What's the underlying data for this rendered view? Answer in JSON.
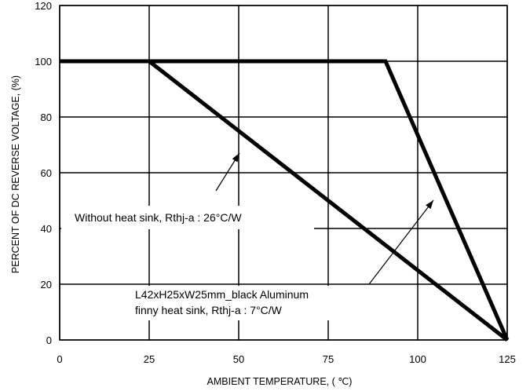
{
  "chart_data": {
    "type": "line",
    "xlabel": "AMBIENT TEMPERATURE, ( ℃)",
    "ylabel": "PERCENT OF DC REVERSE VOLTAGE, (%)",
    "xlim": [
      0,
      125
    ],
    "ylim": [
      0,
      120
    ],
    "x_ticks": [
      "0",
      "25",
      "50",
      "75",
      "100",
      "125"
    ],
    "y_ticks": [
      "0",
      "20",
      "40",
      "60",
      "80",
      "100",
      "120"
    ],
    "grid": true,
    "series": [
      {
        "name": "Without heat sink, Rthj-a : 26°C/W",
        "points": [
          [
            0,
            100
          ],
          [
            25,
            100
          ],
          [
            125,
            0
          ]
        ]
      },
      {
        "name": "L42xH25xW25mm_black Aluminum finny heat sink, Rthj-a : 7°C/W",
        "points": [
          [
            0,
            100
          ],
          [
            91,
            100
          ],
          [
            125,
            0
          ]
        ]
      }
    ],
    "annotations": [
      {
        "lines": [
          "Without heat sink, Rthj-a : 26°C/W"
        ]
      },
      {
        "lines": [
          "L42xH25xW25mm_black Aluminum",
          "finny heat sink, Rthj-a : 7°C/W"
        ]
      }
    ]
  }
}
